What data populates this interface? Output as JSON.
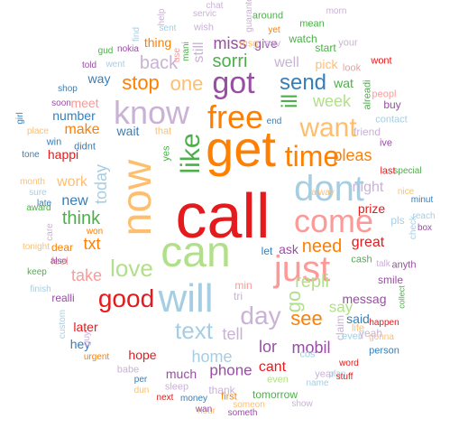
{
  "colors": {
    "red": "#e41a1c",
    "orange": "#ff7f00",
    "green": "#4daf4a",
    "blue": "#377eb8",
    "purple": "#984ea3",
    "salmon": "#fb9a99",
    "lightblue": "#a6cee3",
    "lightgreen": "#b2df8a",
    "lilac": "#cab2d6",
    "peach": "#fdbf6f"
  },
  "words": [
    {
      "text": "call",
      "color": "red"
    },
    {
      "text": "get",
      "color": "orange"
    },
    {
      "text": "now",
      "color": "peach"
    },
    {
      "text": "can",
      "color": "lightgreen"
    },
    {
      "text": "will",
      "color": "lightblue"
    },
    {
      "text": "just",
      "color": "salmon"
    },
    {
      "text": "dont",
      "color": "lightblue"
    },
    {
      "text": "come",
      "color": "salmon"
    },
    {
      "text": "free",
      "color": "orange"
    },
    {
      "text": "know",
      "color": "lilac"
    },
    {
      "text": "like",
      "color": "green"
    },
    {
      "text": "time",
      "color": "orange"
    },
    {
      "text": "want",
      "color": "peach"
    },
    {
      "text": "good",
      "color": "red"
    },
    {
      "text": "got",
      "color": "purple"
    },
    {
      "text": "day",
      "color": "lilac"
    },
    {
      "text": "love",
      "color": "lightgreen"
    },
    {
      "text": "send",
      "color": "blue"
    },
    {
      "text": "text",
      "color": "lightblue"
    },
    {
      "text": "ill",
      "color": "green"
    },
    {
      "text": "see",
      "color": "orange"
    },
    {
      "text": "one",
      "color": "peach"
    },
    {
      "text": "stop",
      "color": "orange"
    },
    {
      "text": "go",
      "color": "lightgreen"
    },
    {
      "text": "think",
      "color": "green"
    },
    {
      "text": "need",
      "color": "orange"
    },
    {
      "text": "repli",
      "color": "lightgreen"
    },
    {
      "text": "take",
      "color": "salmon"
    },
    {
      "text": "today",
      "color": "lightblue"
    },
    {
      "text": "home",
      "color": "lightblue"
    },
    {
      "text": "mobil",
      "color": "purple"
    },
    {
      "text": "phone",
      "color": "purple"
    },
    {
      "text": "lor",
      "color": "purple"
    },
    {
      "text": "tell",
      "color": "lilac"
    },
    {
      "text": "back",
      "color": "lilac"
    },
    {
      "text": "sorri",
      "color": "green"
    },
    {
      "text": "miss",
      "color": "purple"
    },
    {
      "text": "still",
      "color": "lilac"
    },
    {
      "text": "week",
      "color": "lightgreen"
    },
    {
      "text": "well",
      "color": "lilac"
    },
    {
      "text": "pleas",
      "color": "orange"
    },
    {
      "text": "night",
      "color": "lilac"
    },
    {
      "text": "work",
      "color": "peach"
    },
    {
      "text": "make",
      "color": "orange"
    },
    {
      "text": "new",
      "color": "blue"
    },
    {
      "text": "txt",
      "color": "orange"
    },
    {
      "text": "great",
      "color": "red"
    },
    {
      "text": "say",
      "color": "lightgreen"
    },
    {
      "text": "later",
      "color": "red"
    },
    {
      "text": "hey",
      "color": "blue"
    },
    {
      "text": "hope",
      "color": "red"
    },
    {
      "text": "much",
      "color": "purple"
    },
    {
      "text": "cant",
      "color": "red"
    },
    {
      "text": "messag",
      "color": "purple"
    },
    {
      "text": "prize",
      "color": "red"
    },
    {
      "text": "ask",
      "color": "purple"
    },
    {
      "text": "wait",
      "color": "blue"
    },
    {
      "text": "thing",
      "color": "orange"
    },
    {
      "text": "give",
      "color": "purple"
    },
    {
      "text": "happi",
      "color": "red"
    },
    {
      "text": "meet",
      "color": "salmon"
    },
    {
      "text": "number",
      "color": "blue"
    },
    {
      "text": "way",
      "color": "blue"
    },
    {
      "text": "pick",
      "color": "peach"
    },
    {
      "text": "wat",
      "color": "green"
    },
    {
      "text": "said",
      "color": "blue"
    },
    {
      "text": "claim",
      "color": "lilac"
    },
    {
      "text": "yeah",
      "color": "lilac"
    },
    {
      "text": "realli",
      "color": "purple"
    },
    {
      "text": "feel",
      "color": "salmon"
    },
    {
      "text": "dear",
      "color": "orange"
    },
    {
      "text": "pls",
      "color": "lightblue"
    },
    {
      "text": "thank",
      "color": "lilac"
    },
    {
      "text": "tomorrow",
      "color": "green"
    },
    {
      "text": "smile",
      "color": "purple"
    },
    {
      "text": "friend",
      "color": "lilac"
    },
    {
      "text": "watch",
      "color": "green"
    },
    {
      "text": "start",
      "color": "green"
    },
    {
      "text": "tri",
      "color": "lilac"
    },
    {
      "text": "min",
      "color": "salmon"
    },
    {
      "text": "let",
      "color": "blue"
    },
    {
      "text": "buy",
      "color": "purple"
    },
    {
      "text": "last",
      "color": "red"
    },
    {
      "text": "cash",
      "color": "green"
    },
    {
      "text": "alreadi",
      "color": "green"
    },
    {
      "text": "ive",
      "color": "purple"
    },
    {
      "text": "even",
      "color": "lightgreen"
    },
    {
      "text": "year",
      "color": "lilac"
    },
    {
      "text": "sleep",
      "color": "lilac"
    },
    {
      "text": "babe",
      "color": "lilac"
    },
    {
      "text": "first",
      "color": "orange"
    },
    {
      "text": "person",
      "color": "blue"
    },
    {
      "text": "cos",
      "color": "lightblue"
    },
    {
      "text": "everi",
      "color": "lightblue"
    },
    {
      "text": "life",
      "color": "peach"
    },
    {
      "text": "anyth",
      "color": "purple"
    },
    {
      "text": "win",
      "color": "blue"
    },
    {
      "text": "didnt",
      "color": "blue"
    },
    {
      "text": "that",
      "color": "peach"
    },
    {
      "text": "yes",
      "color": "green"
    },
    {
      "text": "wish",
      "color": "lilac"
    },
    {
      "text": "msg",
      "color": "peach"
    },
    {
      "text": "around",
      "color": "green"
    },
    {
      "text": "mean",
      "color": "green"
    },
    {
      "text": "leav",
      "color": "lilac"
    },
    {
      "text": "your",
      "color": "lilac"
    },
    {
      "text": "look",
      "color": "salmon"
    },
    {
      "text": "wont",
      "color": "red"
    },
    {
      "text": "peopl",
      "color": "salmon"
    },
    {
      "text": "contact",
      "color": "lightblue"
    },
    {
      "text": "special",
      "color": "green"
    },
    {
      "text": "nice",
      "color": "peach"
    },
    {
      "text": "minut",
      "color": "blue"
    },
    {
      "text": "reach",
      "color": "lightblue"
    },
    {
      "text": "box",
      "color": "purple"
    },
    {
      "text": "check",
      "color": "lightblue"
    },
    {
      "text": "collect",
      "color": "green"
    },
    {
      "text": "happen",
      "color": "red"
    },
    {
      "text": "gonna",
      "color": "peach"
    },
    {
      "text": "word",
      "color": "red"
    },
    {
      "text": "plan",
      "color": "lightblue"
    },
    {
      "text": "stuff",
      "color": "red"
    },
    {
      "text": "name",
      "color": "lightblue"
    },
    {
      "text": "show",
      "color": "lilac"
    },
    {
      "text": "money",
      "color": "blue"
    },
    {
      "text": "someth",
      "color": "purple"
    },
    {
      "text": "hour",
      "color": "peach"
    },
    {
      "text": "someon",
      "color": "peach"
    },
    {
      "text": "next",
      "color": "red"
    },
    {
      "text": "wan",
      "color": "purple"
    },
    {
      "text": "dun",
      "color": "peach"
    },
    {
      "text": "per",
      "color": "blue"
    },
    {
      "text": "urgent",
      "color": "orange"
    },
    {
      "text": "guy",
      "color": "lilac"
    },
    {
      "text": "custom",
      "color": "lightblue"
    },
    {
      "text": "finish",
      "color": "lightblue"
    },
    {
      "text": "keep",
      "color": "green"
    },
    {
      "text": "also",
      "color": "purple"
    },
    {
      "text": "tonight",
      "color": "peach"
    },
    {
      "text": "care",
      "color": "lilac"
    },
    {
      "text": "won",
      "color": "orange"
    },
    {
      "text": "award",
      "color": "green"
    },
    {
      "text": "late",
      "color": "blue"
    },
    {
      "text": "sure",
      "color": "lightblue"
    },
    {
      "text": "month",
      "color": "peach"
    },
    {
      "text": "tone",
      "color": "blue"
    },
    {
      "text": "place",
      "color": "peach"
    },
    {
      "text": "girl",
      "color": "blue"
    },
    {
      "text": "soon",
      "color": "purple"
    },
    {
      "text": "shop",
      "color": "blue"
    },
    {
      "text": "told",
      "color": "purple"
    },
    {
      "text": "went",
      "color": "lightblue"
    },
    {
      "text": "gud",
      "color": "green"
    },
    {
      "text": "nokia",
      "color": "purple"
    },
    {
      "text": "sent",
      "color": "lightblue"
    },
    {
      "text": "find",
      "color": "lightblue"
    },
    {
      "text": "use",
      "color": "salmon"
    },
    {
      "text": "mani",
      "color": "green"
    },
    {
      "text": "help",
      "color": "lilac"
    },
    {
      "text": "servic",
      "color": "lilac"
    },
    {
      "text": "chat",
      "color": "lilac"
    },
    {
      "text": "yet",
      "color": "orange"
    },
    {
      "text": "guarante",
      "color": "lilac"
    },
    {
      "text": "morn",
      "color": "lilac"
    },
    {
      "text": "end",
      "color": "blue"
    },
    {
      "text": "alway",
      "color": "peach"
    },
    {
      "text": "talk",
      "color": "lilac"
    },
    {
      "text": "thk",
      "color": "salmon"
    },
    {
      "text": "live",
      "color": "lilac"
    }
  ]
}
